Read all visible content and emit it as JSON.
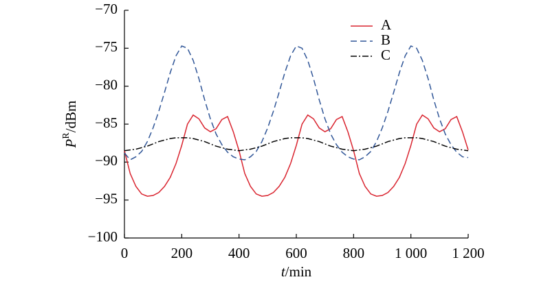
{
  "chart_data": {
    "type": "line",
    "x_label": {
      "italic": "t",
      "rest": "/min"
    },
    "y_label": {
      "italic": "P",
      "sup": "R",
      "rest": "/dBm"
    },
    "xlim": [
      0,
      1200
    ],
    "xticks": [
      0,
      200,
      400,
      600,
      800,
      {
        "value": 1000,
        "label": "1 000"
      },
      {
        "value": 1200,
        "label": "1 200"
      }
    ],
    "ylim": [
      -100,
      -70
    ],
    "yticks": [
      {
        "value": -100,
        "label": "−100"
      },
      {
        "value": -95,
        "label": "−95"
      },
      {
        "value": -90,
        "label": "−90"
      },
      {
        "value": -85,
        "label": "−85"
      },
      {
        "value": -80,
        "label": "−80"
      },
      {
        "value": -75,
        "label": "−75"
      },
      {
        "value": -70,
        "label": "−70"
      }
    ],
    "grid": false,
    "legend": "upper right",
    "x": [
      0,
      20,
      40,
      60,
      80,
      100,
      120,
      140,
      160,
      180,
      200,
      220,
      240,
      260,
      280,
      300,
      320,
      340,
      360,
      380,
      400,
      420,
      440,
      460,
      480,
      500,
      520,
      540,
      560,
      580,
      600,
      620,
      640,
      660,
      680,
      700,
      720,
      740,
      760,
      780,
      800,
      820,
      840,
      860,
      880,
      900,
      920,
      940,
      960,
      980,
      1000,
      1020,
      1040,
      1060,
      1080,
      1100,
      1120,
      1140,
      1160,
      1180,
      1200
    ],
    "series": [
      {
        "name": "A",
        "color": "#d9232e",
        "dash": "solid",
        "values": [
          -88.5,
          -91.5,
          -93.2,
          -94.2,
          -94.5,
          -94.4,
          -94.0,
          -93.2,
          -92.0,
          -90.2,
          -87.8,
          -85.0,
          -83.8,
          -84.3,
          -85.5,
          -86.0,
          -85.6,
          -84.4,
          -84.0,
          -86.0,
          -88.5,
          -91.5,
          -93.2,
          -94.2,
          -94.5,
          -94.4,
          -94.0,
          -93.2,
          -92.0,
          -90.2,
          -87.8,
          -85.0,
          -83.8,
          -84.3,
          -85.5,
          -86.0,
          -85.6,
          -84.4,
          -84.0,
          -86.0,
          -88.5,
          -91.5,
          -93.2,
          -94.2,
          -94.5,
          -94.4,
          -94.0,
          -93.2,
          -92.0,
          -90.2,
          -87.8,
          -85.0,
          -83.8,
          -84.3,
          -85.5,
          -86.0,
          -85.6,
          -84.4,
          -84.0,
          -86.0,
          -88.4
        ]
      },
      {
        "name": "B",
        "color": "#2f5597",
        "dash": "dashed",
        "values": [
          -88.8,
          -89.7,
          -89.3,
          -88.6,
          -87.3,
          -85.5,
          -83.3,
          -80.8,
          -78.2,
          -76.0,
          -74.7,
          -75.0,
          -76.6,
          -79.0,
          -81.8,
          -84.3,
          -86.3,
          -87.7,
          -88.7,
          -89.3,
          -89.6,
          -89.7,
          -89.3,
          -88.6,
          -87.3,
          -85.5,
          -83.3,
          -80.8,
          -78.2,
          -76.0,
          -74.7,
          -75.0,
          -76.6,
          -79.0,
          -81.8,
          -84.3,
          -86.3,
          -87.7,
          -88.7,
          -89.3,
          -89.6,
          -89.7,
          -89.3,
          -88.6,
          -87.3,
          -85.5,
          -83.3,
          -80.8,
          -78.2,
          -76.0,
          -74.7,
          -75.0,
          -76.6,
          -79.0,
          -81.8,
          -84.3,
          -86.3,
          -87.7,
          -88.7,
          -89.3,
          -89.4
        ]
      },
      {
        "name": "C",
        "color": "#000000",
        "dash": "dashdot",
        "values": [
          -88.5,
          -88.4,
          -88.3,
          -88.1,
          -87.9,
          -87.6,
          -87.3,
          -87.1,
          -86.9,
          -86.8,
          -86.8,
          -86.8,
          -86.9,
          -87.1,
          -87.3,
          -87.6,
          -87.9,
          -88.1,
          -88.3,
          -88.4,
          -88.5,
          -88.4,
          -88.3,
          -88.1,
          -87.9,
          -87.6,
          -87.3,
          -87.1,
          -86.9,
          -86.8,
          -86.8,
          -86.8,
          -86.9,
          -87.1,
          -87.3,
          -87.6,
          -87.9,
          -88.1,
          -88.3,
          -88.4,
          -88.5,
          -88.4,
          -88.3,
          -88.1,
          -87.9,
          -87.6,
          -87.3,
          -87.1,
          -86.9,
          -86.8,
          -86.8,
          -86.8,
          -86.9,
          -87.1,
          -87.3,
          -87.6,
          -87.9,
          -88.1,
          -88.3,
          -88.4,
          -88.5
        ]
      }
    ]
  }
}
